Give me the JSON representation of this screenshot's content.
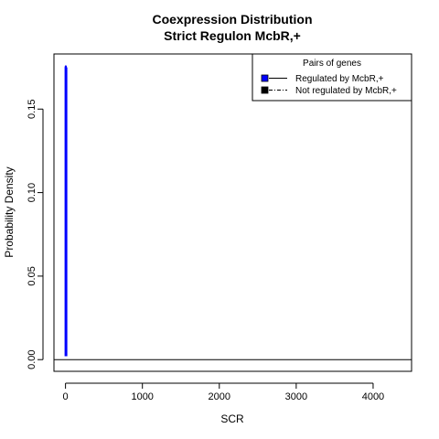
{
  "chart_data": {
    "type": "line",
    "title": "Coexpression Distribution",
    "subtitle": "Strict Regulon McbR,+",
    "xlabel": "SCR",
    "ylabel": "Probability Density",
    "xlim": [
      -150,
      4500
    ],
    "ylim": [
      -0.007,
      0.183
    ],
    "x_ticks": [
      0,
      1000,
      2000,
      3000,
      4000
    ],
    "y_ticks": [
      0.0,
      0.05,
      0.1,
      0.15
    ],
    "x_tick_labels": [
      "0",
      "1000",
      "2000",
      "3000",
      "4000"
    ],
    "y_tick_labels": [
      "0.00",
      "0.05",
      "0.10",
      "0.15"
    ],
    "legend": {
      "title": "Pairs of genes",
      "placement": "top-right",
      "entries": [
        "Regulated by  McbR,+",
        "Not regulated by  McbR,+"
      ]
    },
    "series": [
      {
        "name": "Regulated by  McbR,+",
        "color": "#0000ff",
        "x": [
          0,
          0,
          5,
          5,
          12,
          12
        ],
        "y": [
          0.002,
          0.175,
          0.176,
          0.174,
          0.175,
          0.002
        ]
      },
      {
        "name": "Not regulated by  McbR,+",
        "color": "#000000",
        "x": [
          -150,
          4500
        ],
        "y": [
          0,
          0
        ]
      }
    ]
  }
}
